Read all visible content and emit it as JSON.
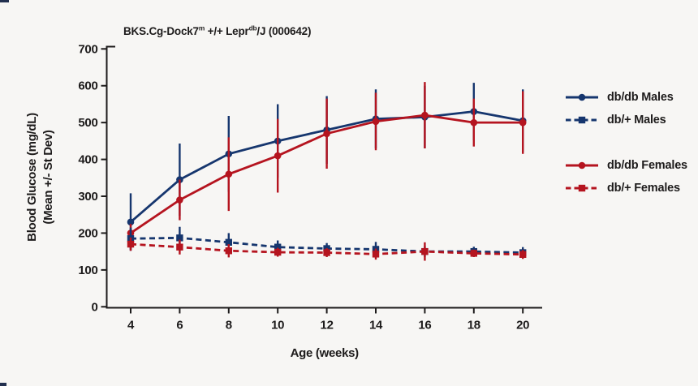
{
  "title": {
    "plain": "BKS.Cg-Dock7m +/+ Leprdb/J (000642)",
    "segments": [
      {
        "text": "BKS.Cg-Dock7"
      },
      {
        "text": "m",
        "sup": true
      },
      {
        "text": " +/+ Lepr"
      },
      {
        "text": "db",
        "sup": true
      },
      {
        "text": "/J (000642)"
      }
    ]
  },
  "colors": {
    "male_navy": "#16366e",
    "female_red": "#b5141f",
    "axis_text": "#1d1b1b",
    "background": "#f7f6f4"
  },
  "chart_data": {
    "type": "line",
    "title": "BKS.Cg-Dock7m +/+ Leprdb/J (000642)",
    "xlabel": "Age (weeks)",
    "ylabel_line1": "Blood Glucose (mg/dL)",
    "ylabel_line2": "(Mean +/- St Dev)",
    "x": [
      4,
      6,
      8,
      10,
      12,
      14,
      16,
      18,
      20
    ],
    "xticks": [
      4,
      6,
      8,
      10,
      12,
      14,
      16,
      18,
      20
    ],
    "yticks": [
      0,
      100,
      200,
      300,
      400,
      500,
      600,
      700
    ],
    "ylim": [
      0,
      700
    ],
    "grid": false,
    "legend_position": "right",
    "error_bars": "standard deviation",
    "series": [
      {
        "name": "db/db Males",
        "color": "#16366e",
        "style": "solid",
        "marker": "circle",
        "values": [
          230,
          345,
          415,
          450,
          480,
          510,
          515,
          530,
          505
        ],
        "sd": [
          78,
          98,
          103,
          100,
          92,
          80,
          85,
          78,
          85
        ]
      },
      {
        "name": "db/+ Males",
        "color": "#16366e",
        "style": "dashed",
        "marker": "square",
        "values": [
          185,
          187,
          175,
          162,
          158,
          156,
          150,
          150,
          147
        ],
        "sd": [
          30,
          30,
          25,
          18,
          15,
          20,
          15,
          13,
          15
        ]
      },
      {
        "name": "db/db Females",
        "color": "#b5141f",
        "style": "solid",
        "marker": "circle",
        "values": [
          200,
          290,
          360,
          410,
          470,
          503,
          520,
          500,
          500
        ],
        "sd": [
          25,
          55,
          100,
          100,
          95,
          78,
          90,
          65,
          85
        ]
      },
      {
        "name": "db/+ Females",
        "color": "#b5141f",
        "style": "dashed",
        "marker": "square",
        "values": [
          170,
          162,
          152,
          148,
          147,
          143,
          150,
          145,
          142
        ],
        "sd": [
          18,
          20,
          18,
          12,
          12,
          15,
          25,
          10,
          12
        ]
      }
    ],
    "legend_groups": [
      [
        0,
        1
      ],
      [
        2,
        3
      ]
    ]
  }
}
